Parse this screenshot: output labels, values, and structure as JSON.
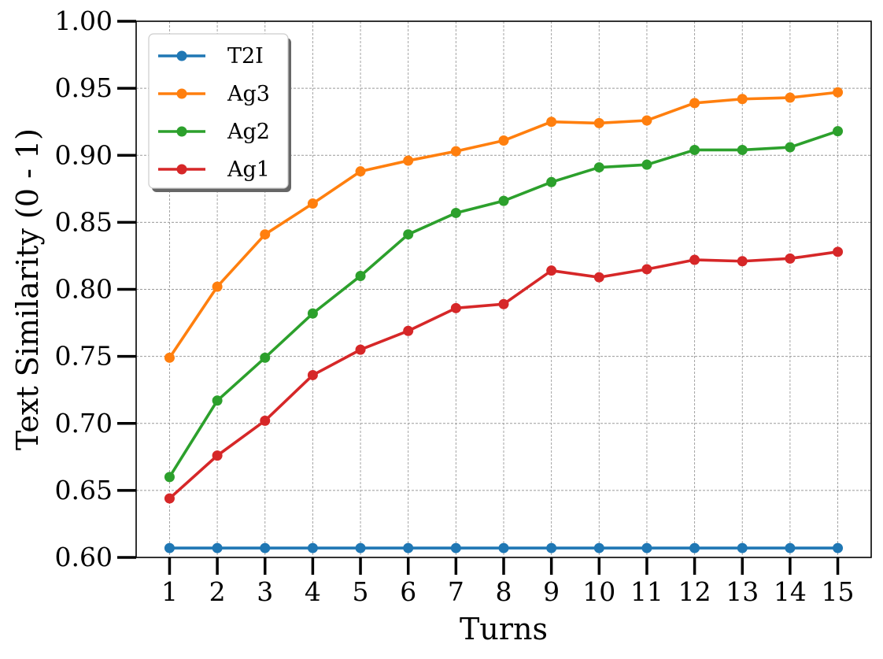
{
  "chart_data": {
    "type": "line",
    "title": "",
    "xlabel": "Turns",
    "ylabel": "Text Similarity (0 - 1)",
    "x": [
      1,
      2,
      3,
      4,
      5,
      6,
      7,
      8,
      9,
      10,
      11,
      12,
      13,
      14,
      15
    ],
    "x_tick_labels": [
      "1",
      "2",
      "3",
      "4",
      "5",
      "6",
      "7",
      "8",
      "9",
      "10",
      "11",
      "12",
      "13",
      "14",
      "15"
    ],
    "ylim": [
      0.6,
      1.0
    ],
    "y_ticks": [
      0.6,
      0.65,
      0.7,
      0.75,
      0.8,
      0.85,
      0.9,
      0.95,
      1.0
    ],
    "y_tick_labels": [
      "0.60",
      "0.65",
      "0.70",
      "0.75",
      "0.80",
      "0.85",
      "0.90",
      "0.95",
      "1.00"
    ],
    "grid": true,
    "legend_position": "top-left",
    "series": [
      {
        "name": "T2I",
        "color": "#1f77b4",
        "values": [
          0.607,
          0.607,
          0.607,
          0.607,
          0.607,
          0.607,
          0.607,
          0.607,
          0.607,
          0.607,
          0.607,
          0.607,
          0.607,
          0.607,
          0.607
        ]
      },
      {
        "name": "Ag3",
        "color": "#ff7f0e",
        "values": [
          0.749,
          0.802,
          0.841,
          0.864,
          0.888,
          0.896,
          0.903,
          0.911,
          0.925,
          0.924,
          0.926,
          0.939,
          0.942,
          0.943,
          0.947
        ]
      },
      {
        "name": "Ag2",
        "color": "#2ca02c",
        "values": [
          0.66,
          0.717,
          0.749,
          0.782,
          0.81,
          0.841,
          0.857,
          0.866,
          0.88,
          0.891,
          0.893,
          0.904,
          0.904,
          0.906,
          0.918
        ]
      },
      {
        "name": "Ag1",
        "color": "#d62728",
        "values": [
          0.644,
          0.676,
          0.702,
          0.736,
          0.755,
          0.769,
          0.786,
          0.789,
          0.814,
          0.809,
          0.815,
          0.822,
          0.821,
          0.823,
          0.828
        ]
      }
    ]
  }
}
